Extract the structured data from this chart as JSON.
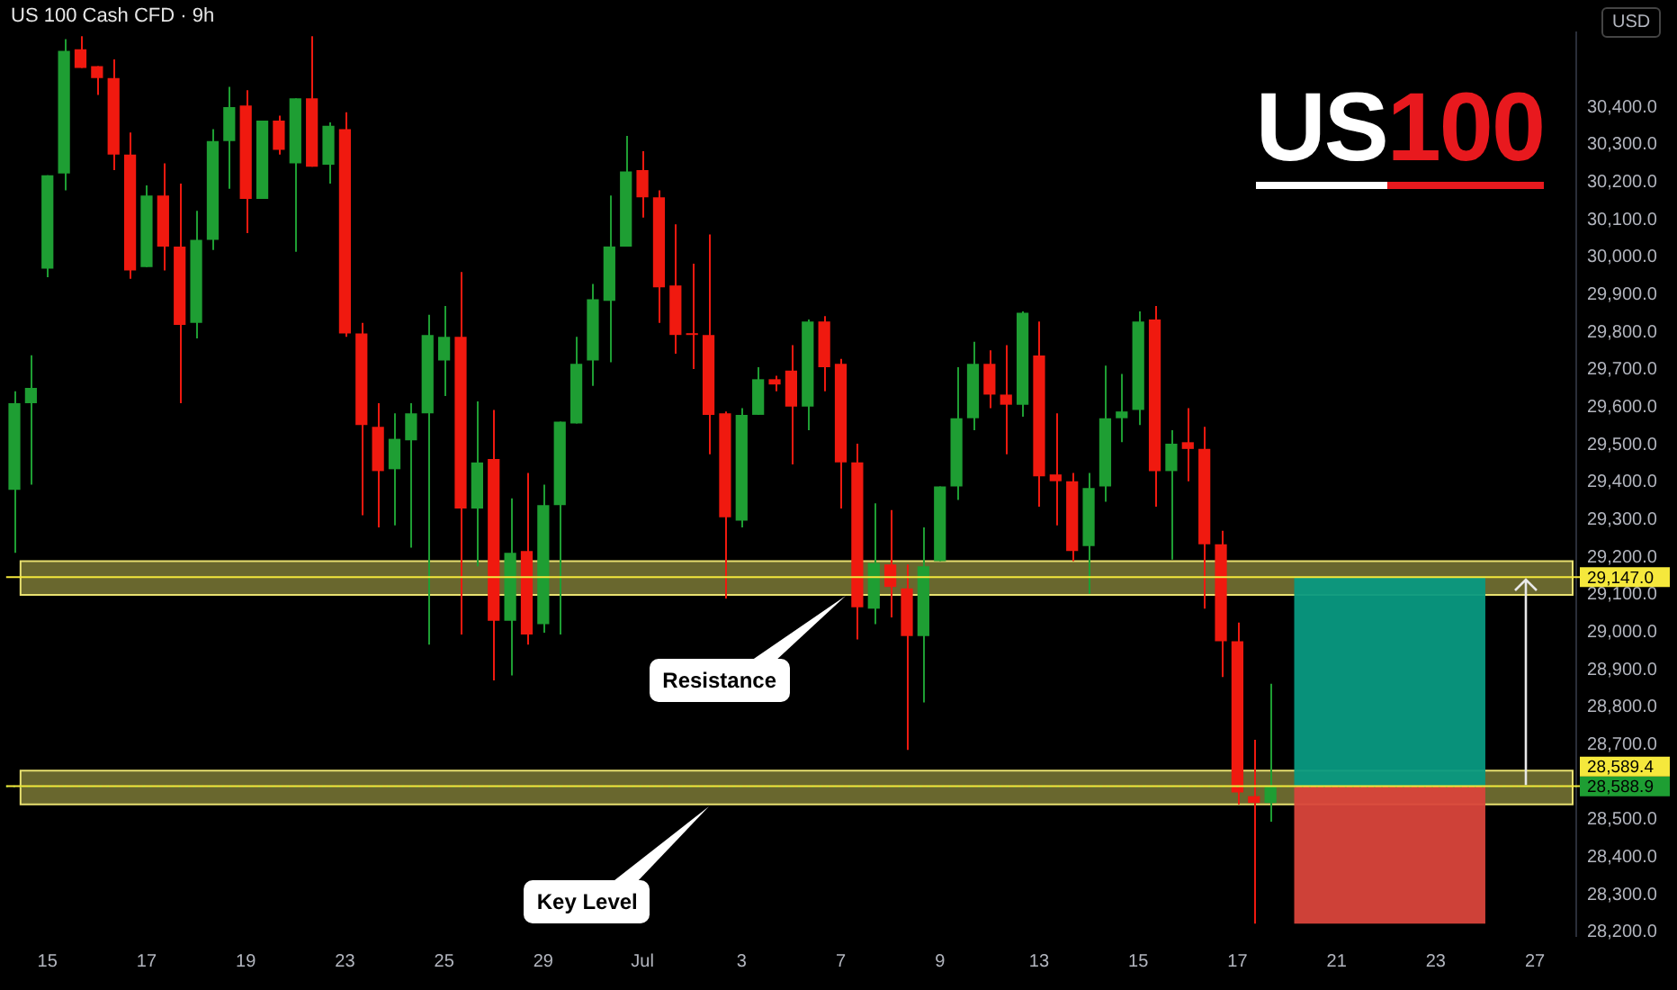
{
  "chart_data": {
    "type": "candlestick",
    "title": "US 100 Cash CFD · 9h",
    "ylabel": "USD",
    "categories": [
      null,
      null,
      "15",
      null,
      null,
      null,
      null,
      null,
      "17",
      null,
      null,
      null,
      null,
      null,
      "19",
      null,
      null,
      null,
      null,
      null,
      "23",
      null,
      null,
      null,
      null,
      null,
      "25",
      null,
      null,
      null,
      null,
      null,
      "29",
      null,
      null,
      null,
      null,
      null,
      "Jul",
      null,
      null,
      null,
      null,
      null,
      "3",
      null,
      null,
      null,
      null,
      null,
      "7",
      null,
      null,
      null,
      null,
      null,
      "9",
      null,
      null,
      null,
      null,
      null,
      "13",
      null,
      null,
      null,
      null,
      null,
      "15",
      null,
      null,
      null,
      null,
      null,
      "17",
      null,
      null,
      null,
      null,
      null,
      "21",
      null,
      null,
      null,
      null,
      null,
      "23",
      null,
      null,
      null,
      null,
      null,
      "27",
      null,
      null
    ],
    "ohlc": [
      [
        29380,
        29643,
        29212,
        29611
      ],
      [
        29611,
        29739,
        29394,
        29652
      ],
      [
        29970,
        30219,
        29947,
        30219
      ],
      [
        30224,
        30582,
        30179,
        30551
      ],
      [
        30555,
        30590,
        30505,
        30505
      ],
      [
        30510,
        30510,
        30433,
        30478
      ],
      [
        30478,
        30528,
        30233,
        30274
      ],
      [
        30274,
        30333,
        29943,
        29965
      ],
      [
        29974,
        30192,
        29974,
        30165
      ],
      [
        30165,
        30251,
        29965,
        30029
      ],
      [
        30029,
        30197,
        29611,
        29820
      ],
      [
        29825,
        30124,
        29784,
        30047
      ],
      [
        30047,
        30342,
        30020,
        30310
      ],
      [
        30310,
        30455,
        30183,
        30401
      ],
      [
        30405,
        30446,
        30065,
        30156
      ],
      [
        30156,
        30365,
        30156,
        30365
      ],
      [
        30365,
        30378,
        30274,
        30287
      ],
      [
        30251,
        30424,
        30015,
        30424
      ],
      [
        30424,
        30590,
        30242,
        30242
      ],
      [
        30247,
        30360,
        30197,
        30351
      ],
      [
        30342,
        30387,
        29788,
        29797
      ],
      [
        29797,
        29825,
        29312,
        29553
      ],
      [
        29548,
        29611,
        29280,
        29430
      ],
      [
        29435,
        29584,
        29285,
        29516
      ],
      [
        29512,
        29611,
        29226,
        29584
      ],
      [
        29584,
        29847,
        28967,
        29793
      ],
      [
        29725,
        29870,
        29630,
        29788
      ],
      [
        29788,
        29961,
        28994,
        29330
      ],
      [
        29330,
        29616,
        29176,
        29453
      ],
      [
        29462,
        29593,
        28872,
        29031
      ],
      [
        29031,
        29357,
        28885,
        29212
      ],
      [
        29217,
        29425,
        28967,
        28994
      ],
      [
        29022,
        29394,
        28999,
        29339
      ],
      [
        29339,
        29562,
        28994,
        29562
      ],
      [
        29557,
        29788,
        29557,
        29716
      ],
      [
        29725,
        29929,
        29657,
        29888
      ],
      [
        29884,
        30165,
        29720,
        30029
      ],
      [
        30029,
        30324,
        30029,
        30229
      ],
      [
        30233,
        30283,
        30106,
        30160
      ],
      [
        30160,
        30179,
        29825,
        29920
      ],
      [
        29925,
        30088,
        29743,
        29793
      ],
      [
        29797,
        29983,
        29702,
        29793
      ],
      [
        29793,
        30061,
        29475,
        29580
      ],
      [
        29584,
        29589,
        29090,
        29307
      ],
      [
        29298,
        29598,
        29280,
        29580
      ],
      [
        29580,
        29707,
        29580,
        29675
      ],
      [
        29675,
        29684,
        29643,
        29661
      ],
      [
        29698,
        29766,
        29448,
        29602
      ],
      [
        29602,
        29834,
        29539,
        29829
      ],
      [
        29829,
        29843,
        29643,
        29707
      ],
      [
        29716,
        29729,
        29330,
        29453
      ],
      [
        29453,
        29503,
        28981,
        29067
      ],
      [
        29063,
        29344,
        29022,
        29185
      ],
      [
        29181,
        29326,
        29040,
        29121
      ],
      [
        29117,
        29181,
        28686,
        28990
      ],
      [
        28990,
        29280,
        28813,
        29176
      ],
      [
        29190,
        29389,
        29190,
        29389
      ],
      [
        29389,
        29707,
        29353,
        29571
      ],
      [
        29571,
        29775,
        29539,
        29716
      ],
      [
        29716,
        29752,
        29598,
        29634
      ],
      [
        29634,
        29766,
        29475,
        29607
      ],
      [
        29607,
        29856,
        29575,
        29852
      ],
      [
        29738,
        29829,
        29335,
        29416
      ],
      [
        29421,
        29584,
        29285,
        29403
      ],
      [
        29403,
        29425,
        29190,
        29217
      ],
      [
        29230,
        29425,
        29103,
        29385
      ],
      [
        29389,
        29711,
        29348,
        29571
      ],
      [
        29571,
        29689,
        29507,
        29589
      ],
      [
        29593,
        29856,
        29553,
        29829
      ],
      [
        29834,
        29870,
        29335,
        29430
      ],
      [
        29430,
        29539,
        29194,
        29503
      ],
      [
        29507,
        29598,
        29403,
        29489
      ],
      [
        29489,
        29548,
        29063,
        29235
      ],
      [
        29235,
        29271,
        28881,
        28976
      ],
      [
        28976,
        29026,
        28541,
        28573
      ],
      [
        28563,
        28713,
        28223,
        28545
      ],
      [
        28545,
        28863,
        28495,
        28588.9
      ],
      null,
      null,
      null,
      null,
      null,
      null,
      null,
      null,
      null,
      null,
      null,
      null,
      null,
      null,
      null,
      null,
      null,
      null
    ],
    "colors": [
      "#1e9e33",
      "#1e9e33",
      "#1e9e33",
      "#1e9e33",
      "#f0190f",
      "#f0190f",
      "#f0190f",
      "#f0190f",
      "#1e9e33",
      "#f0190f",
      "#f0190f",
      "#1e9e33",
      "#1e9e33",
      "#1e9e33",
      "#f0190f",
      "#1e9e33",
      "#f0190f",
      "#1e9e33",
      "#f0190f",
      "#1e9e33",
      "#f0190f",
      "#f0190f",
      "#f0190f",
      "#1e9e33",
      "#1e9e33",
      "#1e9e33",
      "#1e9e33",
      "#f0190f",
      "#1e9e33",
      "#f0190f",
      "#1e9e33",
      "#f0190f",
      "#1e9e33",
      "#1e9e33",
      "#1e9e33",
      "#1e9e33",
      "#1e9e33",
      "#1e9e33",
      "#f0190f",
      "#f0190f",
      "#f0190f",
      "#f0190f",
      "#f0190f",
      "#f0190f",
      "#1e9e33",
      "#1e9e33",
      "#f0190f",
      "#f0190f",
      "#1e9e33",
      "#f0190f",
      "#f0190f",
      "#f0190f",
      "#1e9e33",
      "#f0190f",
      "#f0190f",
      "#1e9e33",
      "#1e9e33",
      "#1e9e33",
      "#1e9e33",
      "#f0190f",
      "#f0190f",
      "#1e9e33",
      "#f0190f",
      "#f0190f",
      "#f0190f",
      "#1e9e33",
      "#1e9e33",
      "#1e9e33",
      "#1e9e33",
      "#f0190f",
      "#1e9e33",
      "#f0190f",
      "#f0190f",
      "#f0190f",
      "#f0190f",
      "#f0190f",
      "#1e9e33",
      null,
      null,
      null,
      null,
      null,
      null,
      null,
      null,
      null,
      null,
      null,
      null,
      null,
      null,
      null,
      null,
      null,
      null
    ],
    "ylim": [
      28190,
      30600
    ],
    "yticks": [
      {
        "value": 28200,
        "label": "28,200.0"
      },
      {
        "value": 28300,
        "label": "28,300.0"
      },
      {
        "value": 28400,
        "label": "28,400.0"
      },
      {
        "value": 28500,
        "label": "28,500.0"
      },
      {
        "value": 28700,
        "label": "28,700.0"
      },
      {
        "value": 28800,
        "label": "28,800.0"
      },
      {
        "value": 28900,
        "label": "28,900.0"
      },
      {
        "value": 29000,
        "label": "29,000.0"
      },
      {
        "value": 29100,
        "label": "29,100.0"
      },
      {
        "value": 29200,
        "label": "29,200.0"
      },
      {
        "value": 29300,
        "label": "29,300.0"
      },
      {
        "value": 29400,
        "label": "29,400.0"
      },
      {
        "value": 29500,
        "label": "29,500.0"
      },
      {
        "value": 29600,
        "label": "29,600.0"
      },
      {
        "value": 29700,
        "label": "29,700.0"
      },
      {
        "value": 29800,
        "label": "29,800.0"
      },
      {
        "value": 29900,
        "label": "29,900.0"
      },
      {
        "value": 30000,
        "label": "30,000.0"
      },
      {
        "value": 30100,
        "label": "30,100.0"
      },
      {
        "value": 30200,
        "label": "30,200.0"
      },
      {
        "value": 30300,
        "label": "30,300.0"
      },
      {
        "value": 30400,
        "label": "30,400.0"
      }
    ],
    "ref_lines": [
      {
        "axis": "y",
        "value": 29147,
        "label": "29,147.0",
        "color": "#f5e83c",
        "line_style": "solid"
      },
      {
        "axis": "y",
        "value": 28589.4,
        "label": "28,589.4",
        "color": "#f5e83c",
        "line_style": "solid"
      },
      {
        "axis": "y",
        "value": 28588.9,
        "label": "28,588.9",
        "color": "#1e9e33",
        "line_style": "dotted"
      }
    ],
    "bands": [
      {
        "axis": "y",
        "from": 29100,
        "to": 29190,
        "color": "#8c8a3e"
      },
      {
        "axis": "y",
        "from": 28541,
        "to": 28631,
        "color": "#8c8a3e"
      },
      {
        "axis": "y",
        "from": 28589.4,
        "to": 29147,
        "color": "#089981"
      },
      {
        "axis": "y",
        "from": 28223,
        "to": 28589.4,
        "color": "#d9453b"
      }
    ],
    "annotations": [
      "US100",
      "Resistance",
      "Key Level"
    ],
    "grid": false
  }
}
